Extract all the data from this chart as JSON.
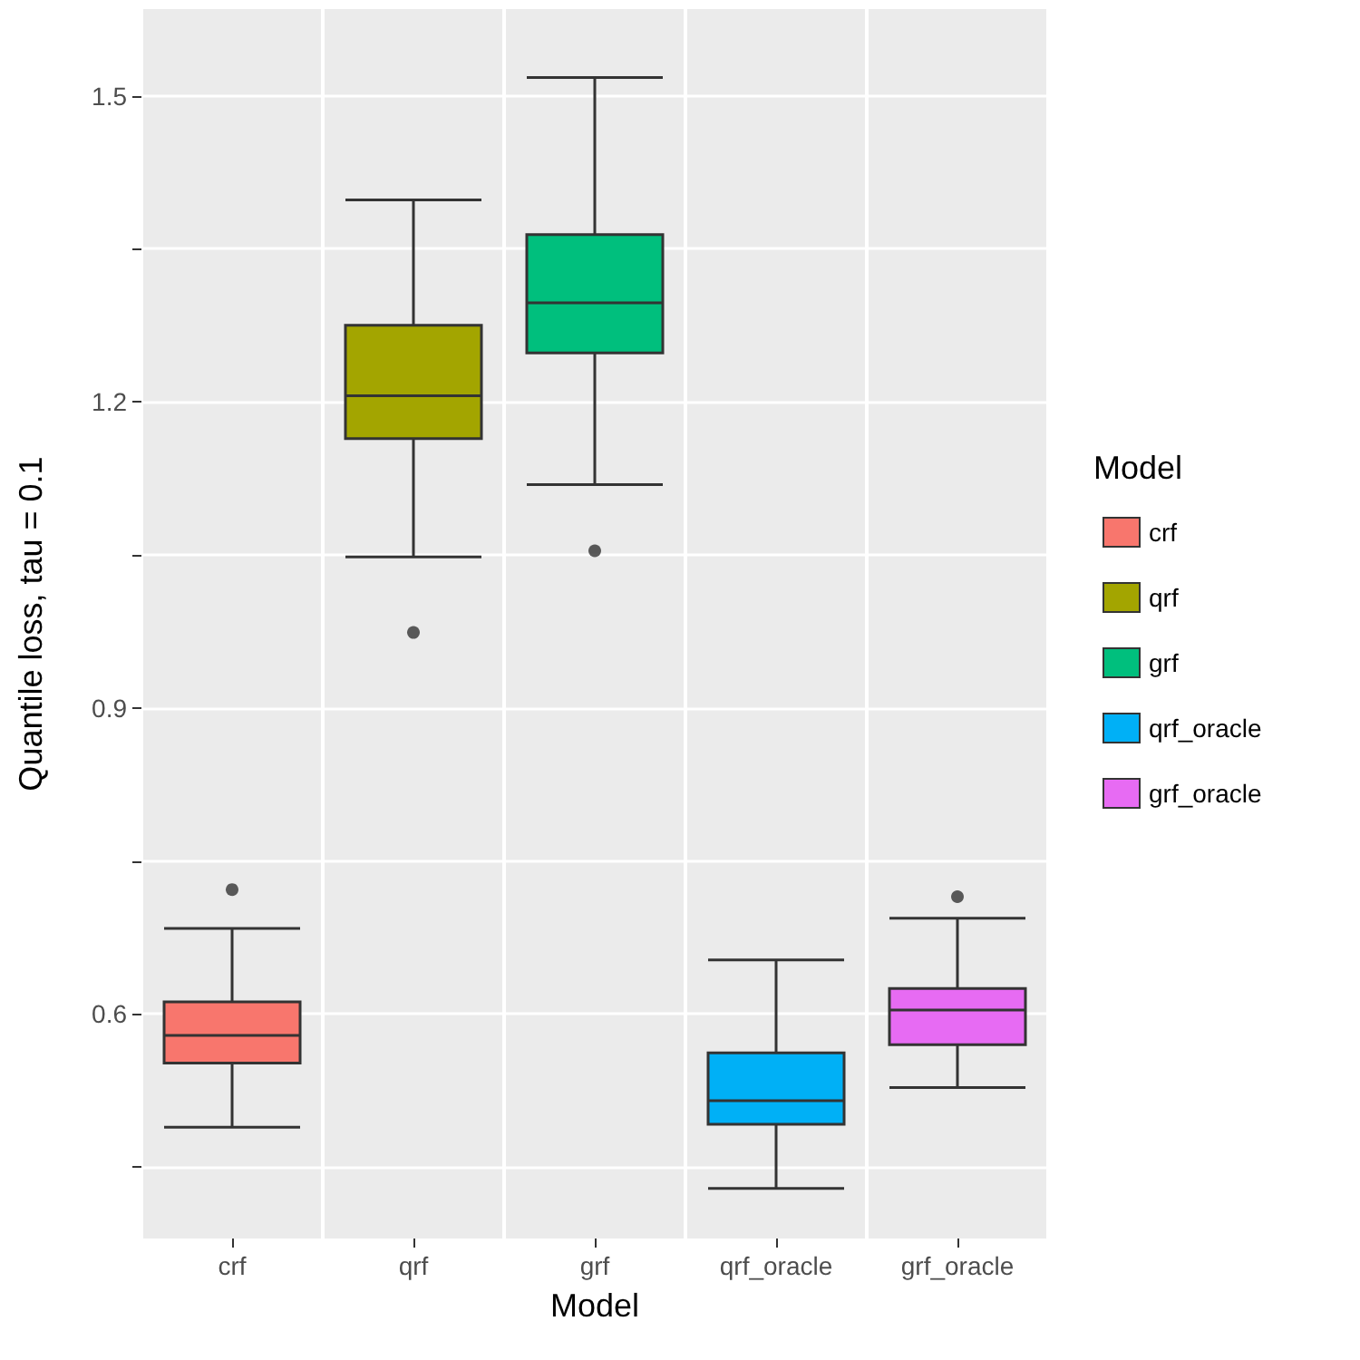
{
  "chart_data": {
    "type": "box",
    "xlabel": "Model",
    "ylabel": "Quantile loss, tau = 0.1",
    "legend_title": "Model",
    "legend": "right",
    "grid": true,
    "categories": [
      "crf",
      "qrf",
      "grf",
      "qrf_oracle",
      "grf_oracle"
    ],
    "series": [
      {
        "name": "crf",
        "color": "#f8766d",
        "boxes": [
          {
            "low": 0.489,
            "q1": 0.552,
            "median": 0.579,
            "q3": 0.612,
            "high": 0.684,
            "outliers": [
              0.722
            ]
          },
          null,
          null,
          null,
          null
        ]
      },
      {
        "name": "qrf",
        "color": "#a3a500",
        "boxes": [
          null,
          {
            "low": 1.048,
            "q1": 1.164,
            "median": 1.206,
            "q3": 1.275,
            "high": 1.398,
            "outliers": [
              0.974
            ]
          },
          null,
          null,
          null
        ]
      },
      {
        "name": "grf",
        "color": "#00bf7d",
        "boxes": [
          null,
          null,
          {
            "low": 1.119,
            "q1": 1.248,
            "median": 1.297,
            "q3": 1.364,
            "high": 1.518,
            "outliers": [
              1.054
            ]
          },
          null,
          null
        ]
      },
      {
        "name": "qrf_oracle",
        "color": "#00b0f6",
        "boxes": [
          null,
          null,
          null,
          {
            "low": 0.429,
            "q1": 0.492,
            "median": 0.515,
            "q3": 0.562,
            "high": 0.653
          },
          null
        ]
      },
      {
        "name": "grf_oracle",
        "color": "#e76bf3",
        "boxes": [
          null,
          null,
          null,
          null,
          {
            "low": 0.528,
            "q1": 0.57,
            "median": 0.604,
            "q3": 0.625,
            "high": 0.694,
            "outliers": [
              0.715
            ]
          }
        ]
      }
    ],
    "ylim": [
      0.38,
      1.585
    ],
    "yticks": [
      {
        "value": 0.45,
        "label": null
      },
      {
        "value": 0.6,
        "label": "0.6"
      },
      {
        "value": 0.75,
        "label": null
      },
      {
        "value": 0.9,
        "label": "0.9"
      },
      {
        "value": 1.05,
        "label": null
      },
      {
        "value": 1.2,
        "label": "1.2"
      },
      {
        "value": 1.35,
        "label": null
      },
      {
        "value": 1.5,
        "label": "1.5"
      }
    ]
  }
}
